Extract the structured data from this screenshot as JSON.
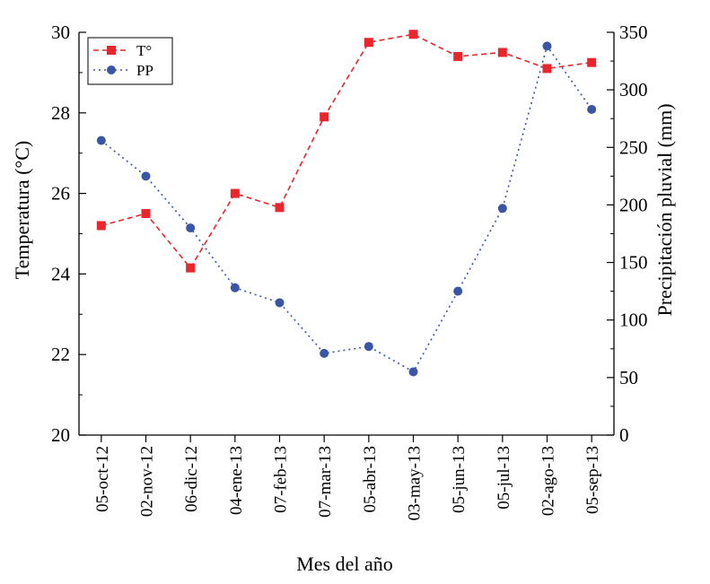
{
  "chart_data": {
    "type": "line",
    "title": "",
    "xlabel": "Mes del año",
    "ylabel_left": "Temperatura (°C)",
    "ylabel_right": "Precipitación pluvial (mm)",
    "categories": [
      "05-oct-12",
      "02-nov-12",
      "06-dic-12",
      "04-ene-13",
      "07-feb-13",
      "07-mar-13",
      "05-abr-13",
      "03-may-13",
      "05-jun-13",
      "05-jul-13",
      "02-ago-13",
      "05-sep-13"
    ],
    "y_left": {
      "min": 20,
      "max": 30,
      "ticks": [
        20,
        22,
        24,
        26,
        28,
        30
      ]
    },
    "y_right": {
      "min": 0,
      "max": 350,
      "ticks": [
        0,
        50,
        100,
        150,
        200,
        250,
        300,
        350
      ]
    },
    "legend_position": "top-left",
    "grid": false,
    "series": [
      {
        "name": "T°",
        "axis": "left",
        "color": "#e8262b",
        "marker": "square",
        "line_style": "dashed",
        "values": [
          25.2,
          25.5,
          24.15,
          26.0,
          25.65,
          27.9,
          29.75,
          29.95,
          29.4,
          29.5,
          29.1,
          29.25
        ]
      },
      {
        "name": "PP",
        "axis": "right",
        "color": "#3a55a6",
        "marker": "circle",
        "line_style": "dotted",
        "values": [
          256,
          225,
          180,
          128,
          115,
          71,
          77,
          55,
          125,
          197,
          338,
          283
        ]
      }
    ]
  }
}
